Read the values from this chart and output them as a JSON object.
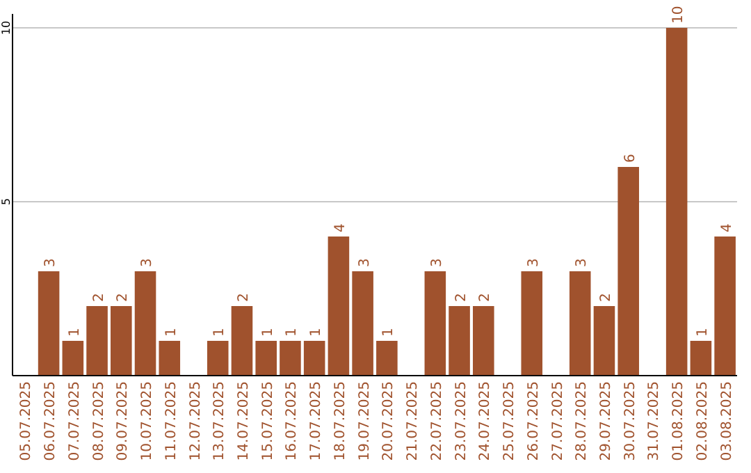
{
  "chart_data": {
    "type": "bar",
    "categories": [
      "05.07.2025",
      "06.07.2025",
      "07.07.2025",
      "08.07.2025",
      "09.07.2025",
      "10.07.2025",
      "11.07.2025",
      "12.07.2025",
      "13.07.2025",
      "14.07.2025",
      "15.07.2025",
      "16.07.2025",
      "17.07.2025",
      "18.07.2025",
      "19.07.2025",
      "20.07.2025",
      "21.07.2025",
      "22.07.2025",
      "23.07.2025",
      "24.07.2025",
      "25.07.2025",
      "26.07.2025",
      "27.07.2025",
      "28.07.2025",
      "29.07.2025",
      "30.07.2025",
      "31.07.2025",
      "01.08.2025",
      "02.08.2025",
      "03.08.2025"
    ],
    "values": [
      0,
      3,
      1,
      2,
      2,
      3,
      1,
      0,
      1,
      2,
      1,
      1,
      1,
      4,
      3,
      1,
      0,
      3,
      2,
      2,
      0,
      3,
      0,
      3,
      2,
      6,
      0,
      10,
      1,
      4
    ],
    "value_labels": [
      null,
      "3",
      "1",
      "2",
      "2",
      "3",
      "1",
      null,
      "1",
      "2",
      "1",
      "1",
      "1",
      "4",
      "3",
      "1",
      null,
      "3",
      "2",
      "2",
      null,
      "3",
      null,
      "3",
      "2",
      "6",
      null,
      "10",
      "1",
      "4"
    ],
    "color": "#a0522d",
    "ylim": [
      0,
      10.4
    ],
    "yticks": [
      5,
      10
    ],
    "grid": "y"
  }
}
